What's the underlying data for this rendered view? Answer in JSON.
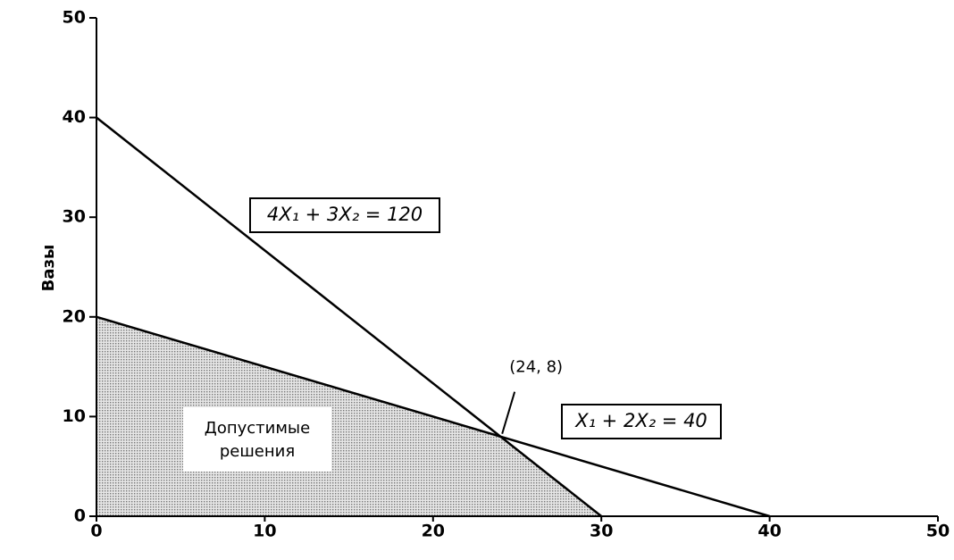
{
  "chart_data": {
    "type": "line",
    "y_label": "Вазы",
    "xlim": [
      0,
      50
    ],
    "ylim": [
      0,
      50
    ],
    "xticks": [
      0,
      10,
      20,
      30,
      40,
      50
    ],
    "yticks": [
      0,
      10,
      20,
      30,
      40,
      50
    ],
    "grid": false,
    "series": [
      {
        "name": "4X₁ + 3X₂ = 120",
        "color": "#000000",
        "x": [
          0,
          30
        ],
        "values": [
          40,
          0
        ]
      },
      {
        "name": "X₁ + 2X₂ = 40",
        "color": "#000000",
        "x": [
          0,
          40
        ],
        "values": [
          20,
          0
        ]
      }
    ],
    "feasible_region": {
      "label": [
        "Допустимые",
        "решения"
      ],
      "color": "#c8c8c8",
      "x": [
        0,
        0,
        24,
        30
      ],
      "y": [
        0,
        20,
        8,
        0
      ]
    },
    "annotations": [
      {
        "text": "(24, 8)",
        "x": 24,
        "y": 8
      }
    ]
  }
}
